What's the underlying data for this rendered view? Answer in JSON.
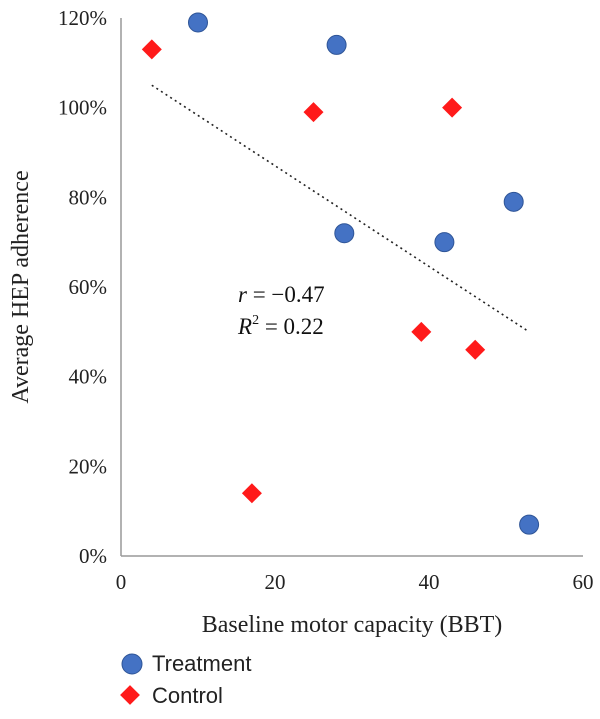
{
  "chart_data": {
    "type": "scatter",
    "title": "",
    "xlabel": "Baseline motor capacity (BBT)",
    "ylabel": "Average HEP adherence",
    "xlim": [
      0,
      60
    ],
    "ylim": [
      0,
      120
    ],
    "x_ticks": [
      "0",
      "20",
      "40",
      "60"
    ],
    "y_ticks": [
      "0%",
      "20%",
      "40%",
      "60%",
      "80%",
      "100%",
      "120%"
    ],
    "x_tick_values": [
      0,
      20,
      40,
      60
    ],
    "y_tick_values": [
      0,
      20,
      40,
      60,
      80,
      100,
      120
    ],
    "grid": false,
    "legend_position": "bottom-left",
    "series": [
      {
        "name": "Treatment",
        "marker": "circle",
        "color": "#4472C4",
        "points": [
          [
            10,
            119
          ],
          [
            28,
            114
          ],
          [
            29,
            72
          ],
          [
            42,
            70
          ],
          [
            51,
            79
          ],
          [
            53,
            7
          ]
        ]
      },
      {
        "name": "Control",
        "marker": "diamond",
        "color": "#FF1A1A",
        "points": [
          [
            4,
            113
          ],
          [
            25,
            99
          ],
          [
            43,
            100
          ],
          [
            39,
            50
          ],
          [
            46,
            46
          ],
          [
            17,
            14
          ]
        ]
      }
    ],
    "trendline": {
      "style": "dotted",
      "x_start": 4,
      "y_start": 105,
      "x_end": 53,
      "y_end": 50
    },
    "annotation": {
      "r_line": {
        "symbol": "r",
        "equals": " = −0.47"
      },
      "r2_line": {
        "symbol": "R",
        "superscript": "2",
        "equals": " = 0.22"
      }
    }
  },
  "colors": {
    "treatment": "#4472C4",
    "control": "#FF1A1A",
    "axis": "#999999"
  }
}
